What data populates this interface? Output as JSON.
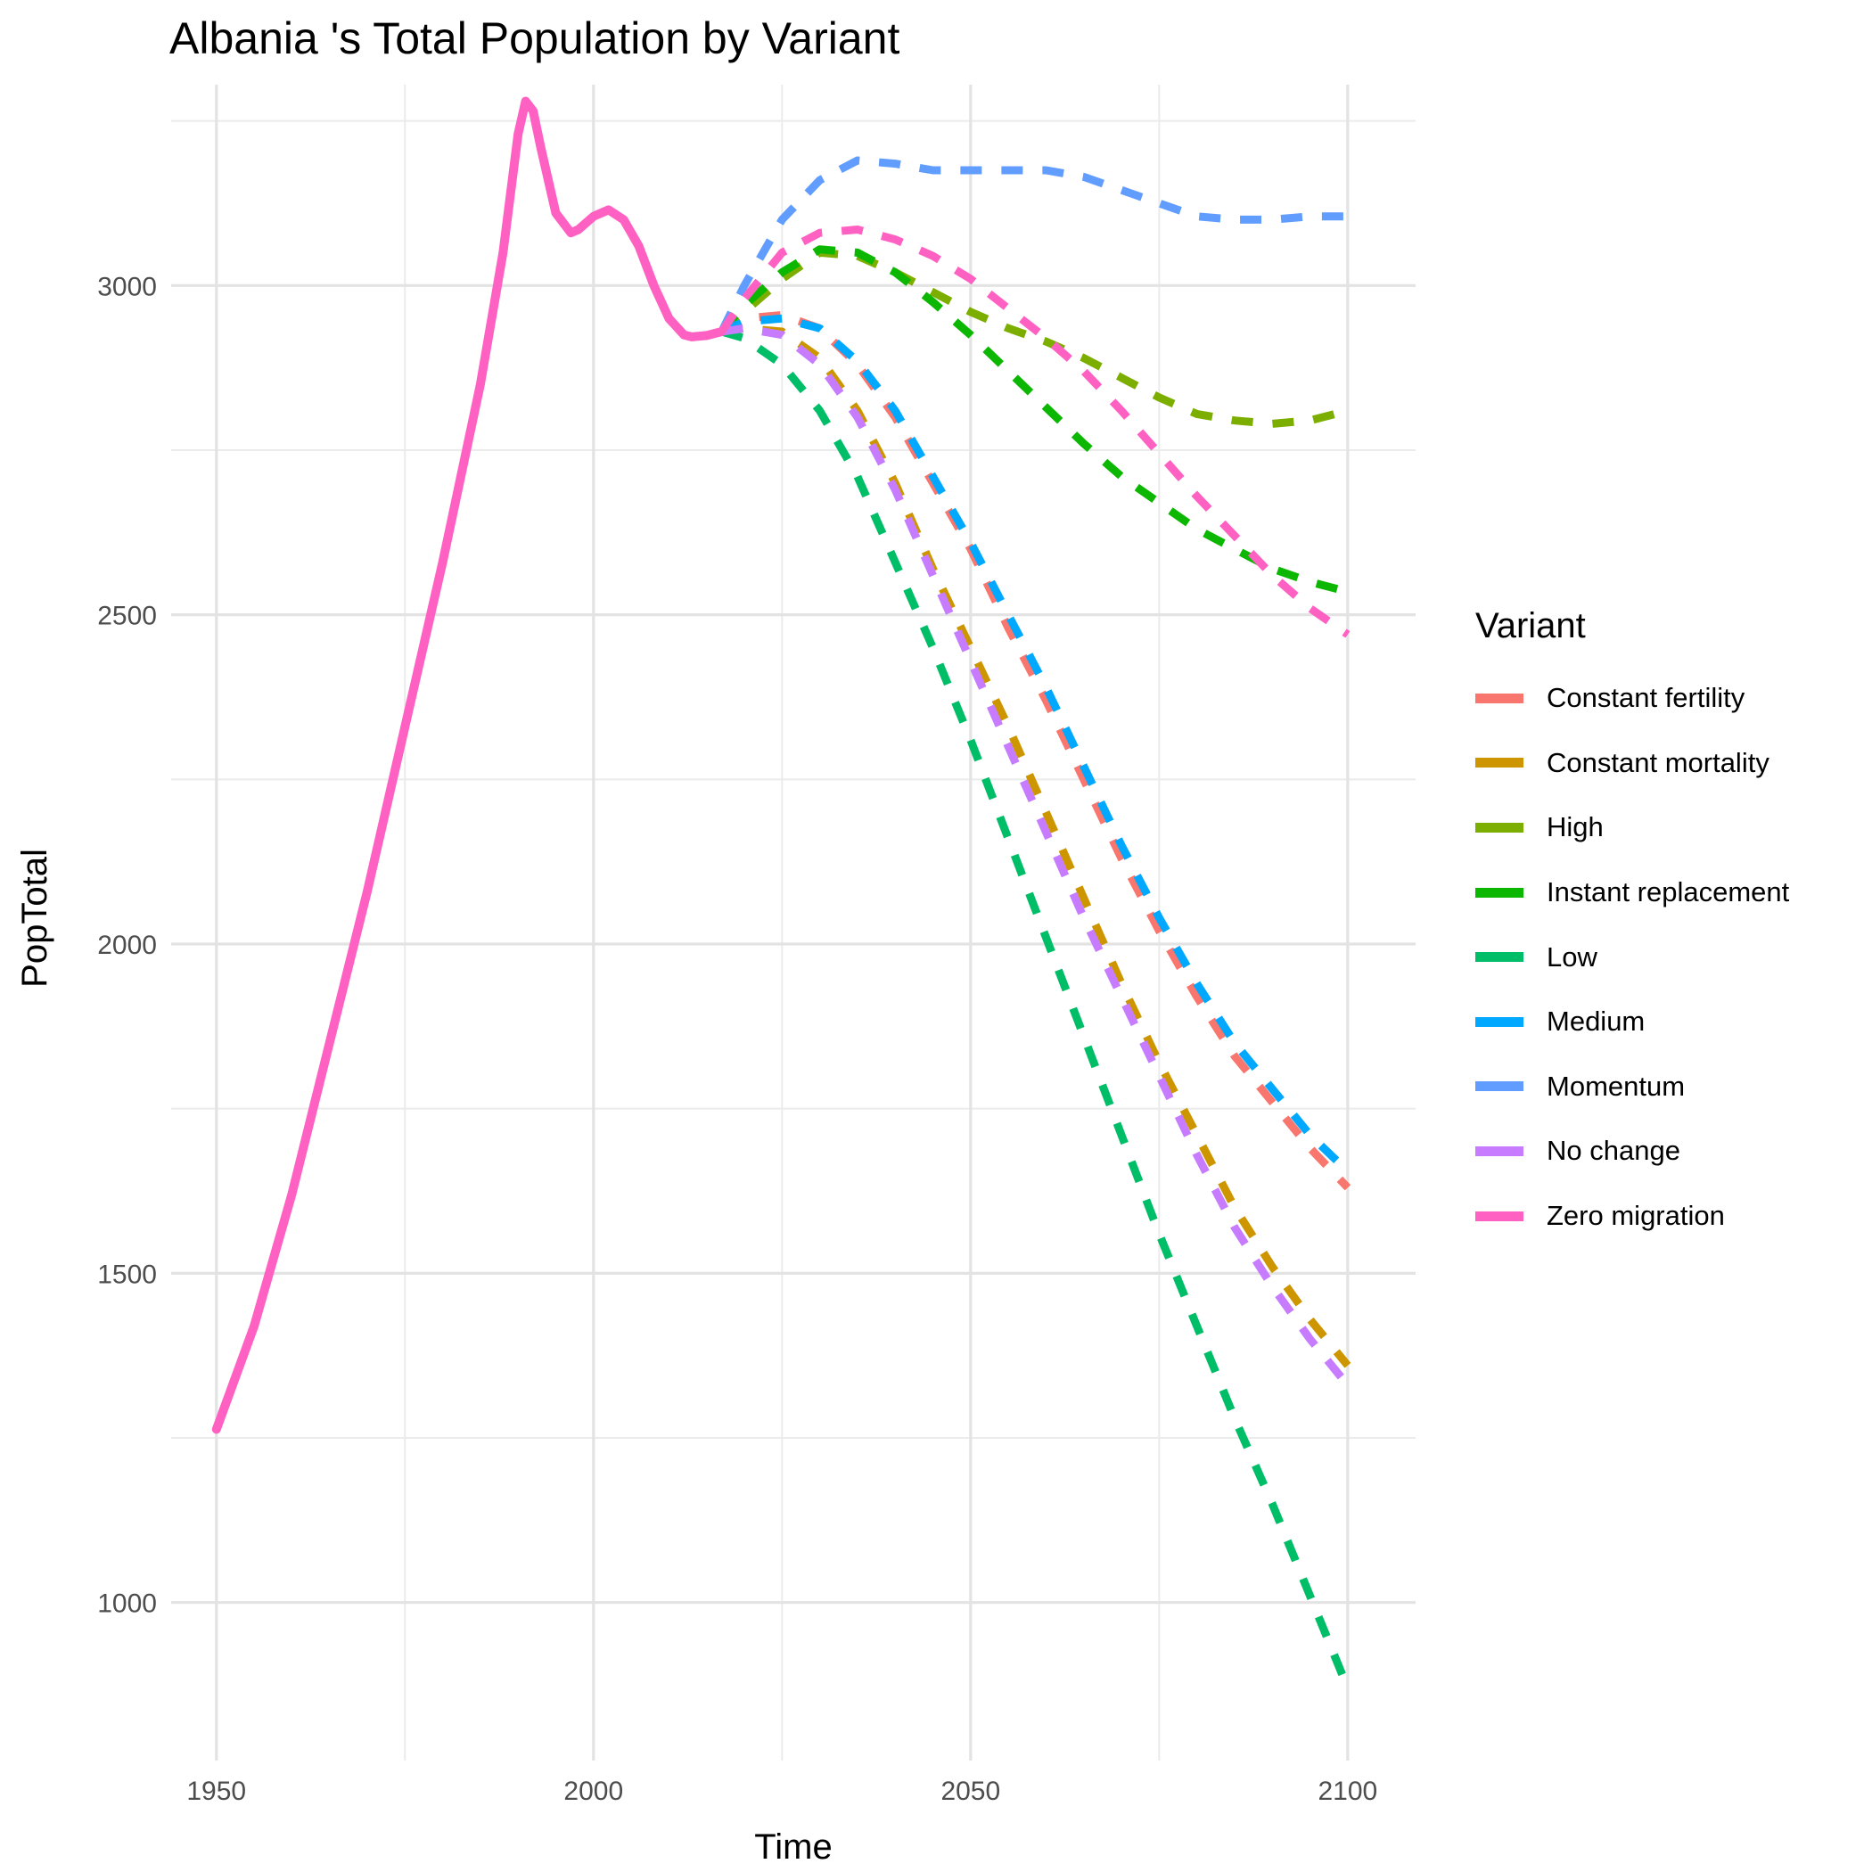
{
  "chart_data": {
    "type": "line",
    "title": "Albania 's Total Population by Variant",
    "xlabel": "Time",
    "ylabel": "PopTotal",
    "xlim": [
      1944,
      2109
    ],
    "ylim": [
      760,
      3305
    ],
    "x_ticks": [
      1950,
      2000,
      2050,
      2100
    ],
    "y_ticks": [
      1000,
      1500,
      2000,
      2500,
      3000
    ],
    "grid": true,
    "legend_title": "Variant",
    "legend_position": "right",
    "historical": {
      "variant": "Zero migration",
      "x": [
        1950,
        1955,
        1960,
        1965,
        1970,
        1975,
        1980,
        1985,
        1988,
        1990,
        1991,
        1992,
        1993,
        1995,
        1997,
        1998,
        2000,
        2002,
        2004,
        2006,
        2008,
        2010,
        2012,
        2013,
        2015,
        2017
      ],
      "values": [
        1263,
        1420,
        1620,
        1850,
        2080,
        2330,
        2580,
        2850,
        3050,
        3230,
        3280,
        3265,
        3210,
        3110,
        3080,
        3085,
        3105,
        3115,
        3100,
        3060,
        3000,
        2950,
        2925,
        2922,
        2924,
        2930
      ]
    },
    "series": [
      {
        "name": "Constant fertility",
        "color": "#F8766D",
        "x": [
          2017,
          2020,
          2025,
          2030,
          2035,
          2040,
          2045,
          2050,
          2055,
          2060,
          2065,
          2070,
          2075,
          2080,
          2085,
          2090,
          2095,
          2100
        ],
        "values": [
          2930,
          2950,
          2955,
          2935,
          2880,
          2800,
          2700,
          2600,
          2480,
          2370,
          2250,
          2130,
          2020,
          1920,
          1830,
          1760,
          1690,
          1630
        ]
      },
      {
        "name": "Constant mortality",
        "color": "#CD9600",
        "x": [
          2017,
          2020,
          2025,
          2030,
          2035,
          2040,
          2045,
          2050,
          2055,
          2060,
          2065,
          2070,
          2075,
          2080,
          2085,
          2090,
          2095,
          2100
        ],
        "values": [
          2930,
          2935,
          2930,
          2890,
          2810,
          2700,
          2570,
          2450,
          2330,
          2200,
          2070,
          1940,
          1820,
          1710,
          1600,
          1510,
          1430,
          1360
        ]
      },
      {
        "name": "High",
        "color": "#7CAE00",
        "x": [
          2017,
          2020,
          2025,
          2030,
          2035,
          2040,
          2045,
          2050,
          2055,
          2060,
          2065,
          2070,
          2075,
          2080,
          2085,
          2090,
          2095,
          2100
        ],
        "values": [
          2930,
          2960,
          3010,
          3050,
          3045,
          3020,
          2990,
          2960,
          2935,
          2915,
          2890,
          2860,
          2830,
          2805,
          2795,
          2790,
          2795,
          2810
        ]
      },
      {
        "name": "Instant replacement",
        "color": "#0CB702",
        "x": [
          2017,
          2020,
          2025,
          2030,
          2035,
          2040,
          2045,
          2050,
          2055,
          2060,
          2065,
          2070,
          2075,
          2080,
          2085,
          2090,
          2095,
          2100
        ],
        "values": [
          2930,
          2970,
          3020,
          3055,
          3050,
          3020,
          2975,
          2925,
          2870,
          2815,
          2760,
          2710,
          2670,
          2630,
          2600,
          2570,
          2550,
          2535
        ]
      },
      {
        "name": "Low",
        "color": "#00BE67",
        "x": [
          2017,
          2020,
          2025,
          2030,
          2035,
          2040,
          2045,
          2050,
          2055,
          2060,
          2065,
          2070,
          2075,
          2080,
          2085,
          2090,
          2095,
          2100
        ],
        "values": [
          2930,
          2920,
          2880,
          2810,
          2710,
          2580,
          2450,
          2310,
          2160,
          2010,
          1860,
          1710,
          1560,
          1420,
          1280,
          1150,
          1010,
          870
        ]
      },
      {
        "name": "Medium",
        "color": "#00A9FF",
        "x": [
          2017,
          2020,
          2025,
          2030,
          2035,
          2040,
          2045,
          2050,
          2055,
          2060,
          2065,
          2070,
          2075,
          2080,
          2085,
          2090,
          2095,
          2100
        ],
        "values": [
          2930,
          2945,
          2950,
          2935,
          2885,
          2810,
          2710,
          2610,
          2500,
          2390,
          2270,
          2150,
          2040,
          1940,
          1850,
          1780,
          1710,
          1655
        ]
      },
      {
        "name": "Momentum",
        "color": "#619CFF",
        "x": [
          2017,
          2020,
          2025,
          2030,
          2035,
          2040,
          2045,
          2050,
          2055,
          2060,
          2065,
          2070,
          2075,
          2080,
          2085,
          2090,
          2095,
          2100
        ],
        "values": [
          2930,
          3000,
          3100,
          3160,
          3190,
          3185,
          3175,
          3175,
          3175,
          3175,
          3165,
          3145,
          3125,
          3105,
          3100,
          3100,
          3105,
          3105
        ]
      },
      {
        "name": "No change",
        "color": "#C77CFF",
        "x": [
          2017,
          2020,
          2025,
          2030,
          2035,
          2040,
          2045,
          2050,
          2055,
          2060,
          2065,
          2070,
          2075,
          2080,
          2085,
          2090,
          2095,
          2100
        ],
        "values": [
          2930,
          2935,
          2925,
          2880,
          2800,
          2690,
          2560,
          2430,
          2300,
          2170,
          2040,
          1920,
          1800,
          1680,
          1570,
          1480,
          1400,
          1330
        ]
      },
      {
        "name": "Zero migration",
        "color": "#FF61C3",
        "x": [
          2017,
          2020,
          2025,
          2030,
          2035,
          2040,
          2045,
          2050,
          2055,
          2060,
          2065,
          2070,
          2075,
          2080,
          2085,
          2090,
          2095,
          2100
        ],
        "values": [
          2930,
          2980,
          3050,
          3080,
          3085,
          3070,
          3045,
          3010,
          2965,
          2920,
          2870,
          2810,
          2745,
          2680,
          2620,
          2560,
          2510,
          2470
        ]
      }
    ]
  }
}
